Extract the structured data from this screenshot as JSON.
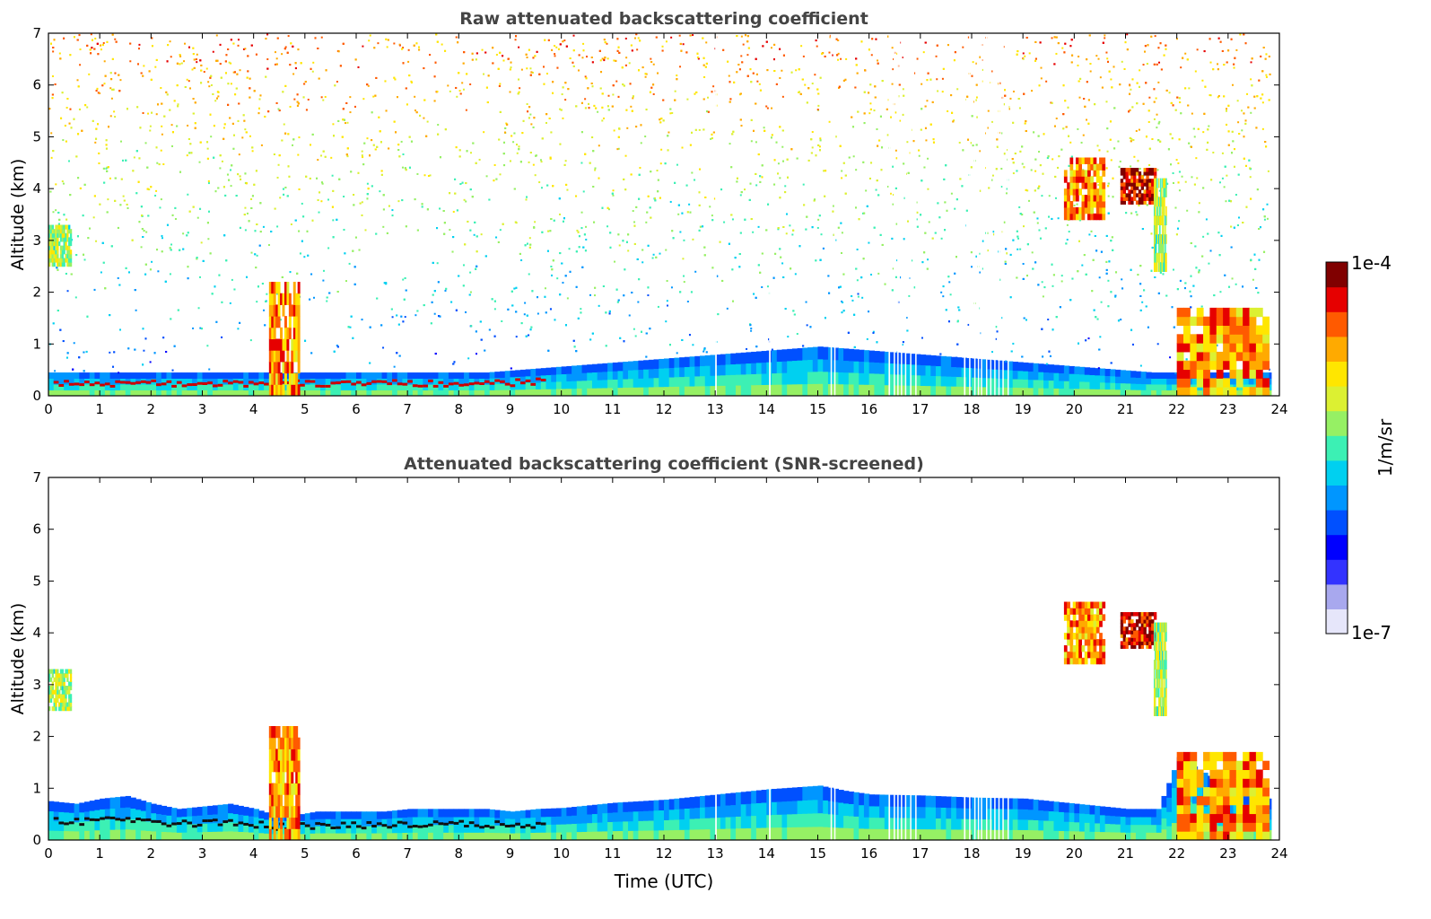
{
  "chart_data": [
    {
      "type": "heatmap",
      "title": "Raw attenuated backscattering coefficient",
      "xlabel": "",
      "ylabel": "Altitude (km)",
      "xlim": [
        0,
        24
      ],
      "ylim": [
        0,
        7
      ],
      "xticks": [
        "0",
        "1",
        "2",
        "3",
        "4",
        "5",
        "6",
        "7",
        "8",
        "9",
        "10",
        "11",
        "12",
        "13",
        "14",
        "15",
        "16",
        "17",
        "18",
        "19",
        "20",
        "21",
        "22",
        "23",
        "24"
      ],
      "yticks": [
        "0",
        "1",
        "2",
        "3",
        "4",
        "5",
        "6",
        "7"
      ],
      "gaps": [
        [
          13.0,
          13.03
        ],
        [
          14.05,
          14.08
        ],
        [
          15.25,
          15.27
        ],
        [
          15.32,
          15.34
        ],
        [
          16.38,
          16.41
        ],
        [
          16.48,
          16.5
        ],
        [
          16.55,
          16.57
        ],
        [
          16.62,
          16.64
        ],
        [
          16.7,
          16.72
        ],
        [
          16.8,
          16.82
        ],
        [
          16.9,
          16.92
        ],
        [
          17.85,
          17.88
        ],
        [
          17.95,
          17.97
        ],
        [
          18.05,
          18.07
        ],
        [
          18.12,
          18.14
        ],
        [
          18.18,
          18.2
        ],
        [
          18.28,
          18.3
        ],
        [
          18.36,
          18.38
        ],
        [
          18.44,
          18.46
        ],
        [
          18.52,
          18.54
        ],
        [
          18.6,
          18.62
        ],
        [
          18.7,
          18.72
        ]
      ],
      "features": [
        {
          "name": "boundary-layer",
          "x": [
            0,
            24
          ],
          "note": "blue aerosol layer, top ~0.4-1.0 km, rising to ~1 km near 15 UTC"
        },
        {
          "name": "cloud-0-0.5",
          "x": [
            0,
            0.45
          ],
          "y": [
            2.5,
            3.3
          ],
          "level": "moderate"
        },
        {
          "name": "convective-4.5",
          "x": [
            4.3,
            4.9
          ],
          "y": [
            0,
            2.2
          ],
          "level": "strong"
        },
        {
          "name": "cloud-20",
          "x": [
            19.8,
            20.6
          ],
          "y": [
            3.4,
            4.6
          ],
          "level": "strong"
        },
        {
          "name": "cloud-21",
          "x": [
            20.9,
            21.6
          ],
          "y": [
            3.7,
            4.4
          ],
          "level": "very strong"
        },
        {
          "name": "virga-21.7",
          "x": [
            21.55,
            21.8
          ],
          "y": [
            2.4,
            4.2
          ],
          "level": "moderate"
        },
        {
          "name": "low-cloud-22",
          "x": [
            22.0,
            23.8
          ],
          "y": [
            0,
            1.7
          ],
          "level": "strong"
        }
      ]
    },
    {
      "type": "heatmap",
      "title": "Attenuated backscattering coefficient (SNR-screened)",
      "xlabel": "Time (UTC)",
      "ylabel": "Altitude (km)",
      "xlim": [
        0,
        24
      ],
      "ylim": [
        0,
        7
      ],
      "xticks": [
        "0",
        "1",
        "2",
        "3",
        "4",
        "5",
        "6",
        "7",
        "8",
        "9",
        "10",
        "11",
        "12",
        "13",
        "14",
        "15",
        "16",
        "17",
        "18",
        "19",
        "20",
        "21",
        "22",
        "23",
        "24"
      ],
      "yticks": [
        "0",
        "1",
        "2",
        "3",
        "4",
        "5",
        "6",
        "7"
      ],
      "boundary_layer_top": {
        "time": [
          0,
          0.5,
          1,
          1.5,
          2,
          2.5,
          3,
          3.5,
          4,
          4.3,
          4.9,
          5.2,
          5.5,
          6,
          6.5,
          7,
          7.5,
          8,
          8.5,
          9,
          9.5,
          10,
          11,
          12,
          13,
          14,
          15,
          15.5,
          16,
          17,
          18,
          19,
          20,
          21,
          21.6,
          22,
          22.5,
          23,
          23.8
        ],
        "altitude_km": [
          0.75,
          0.7,
          0.8,
          0.85,
          0.7,
          0.6,
          0.65,
          0.7,
          0.6,
          0.5,
          0.5,
          0.55,
          0.55,
          0.55,
          0.55,
          0.6,
          0.6,
          0.6,
          0.6,
          0.55,
          0.6,
          0.62,
          0.72,
          0.78,
          0.88,
          0.98,
          1.05,
          0.95,
          0.88,
          0.86,
          0.82,
          0.8,
          0.7,
          0.6,
          0.6,
          1.6,
          1.3,
          1.0,
          0.8
        ]
      },
      "features": [
        {
          "name": "cloud-0-0.5",
          "x": [
            0,
            0.45
          ],
          "y": [
            2.5,
            3.3
          ],
          "level": "moderate"
        },
        {
          "name": "convective-4.5",
          "x": [
            4.3,
            4.9
          ],
          "y": [
            0,
            2.2
          ],
          "level": "strong"
        },
        {
          "name": "cloud-20",
          "x": [
            19.8,
            20.6
          ],
          "y": [
            3.4,
            4.6
          ],
          "level": "strong"
        },
        {
          "name": "cloud-21",
          "x": [
            20.9,
            21.6
          ],
          "y": [
            3.7,
            4.4
          ],
          "level": "very strong"
        },
        {
          "name": "virga-21.7",
          "x": [
            21.55,
            21.8
          ],
          "y": [
            2.4,
            4.2
          ],
          "level": "moderate"
        },
        {
          "name": "low-cloud-22",
          "x": [
            22.0,
            23.8
          ],
          "y": [
            0,
            1.7
          ],
          "level": "strong"
        }
      ]
    }
  ],
  "colorbar": {
    "label": "1/m/sr",
    "max_label": "1e-4",
    "min_label": "1e-7",
    "scale": "log",
    "colors": [
      "#e6e6fa",
      "#a8a8ee",
      "#3333ff",
      "#0000ff",
      "#0050ff",
      "#0096ff",
      "#00d0f0",
      "#3cf0b4",
      "#96f064",
      "#dcf032",
      "#ffe600",
      "#ffaa00",
      "#ff5a00",
      "#e60000",
      "#800000"
    ]
  }
}
